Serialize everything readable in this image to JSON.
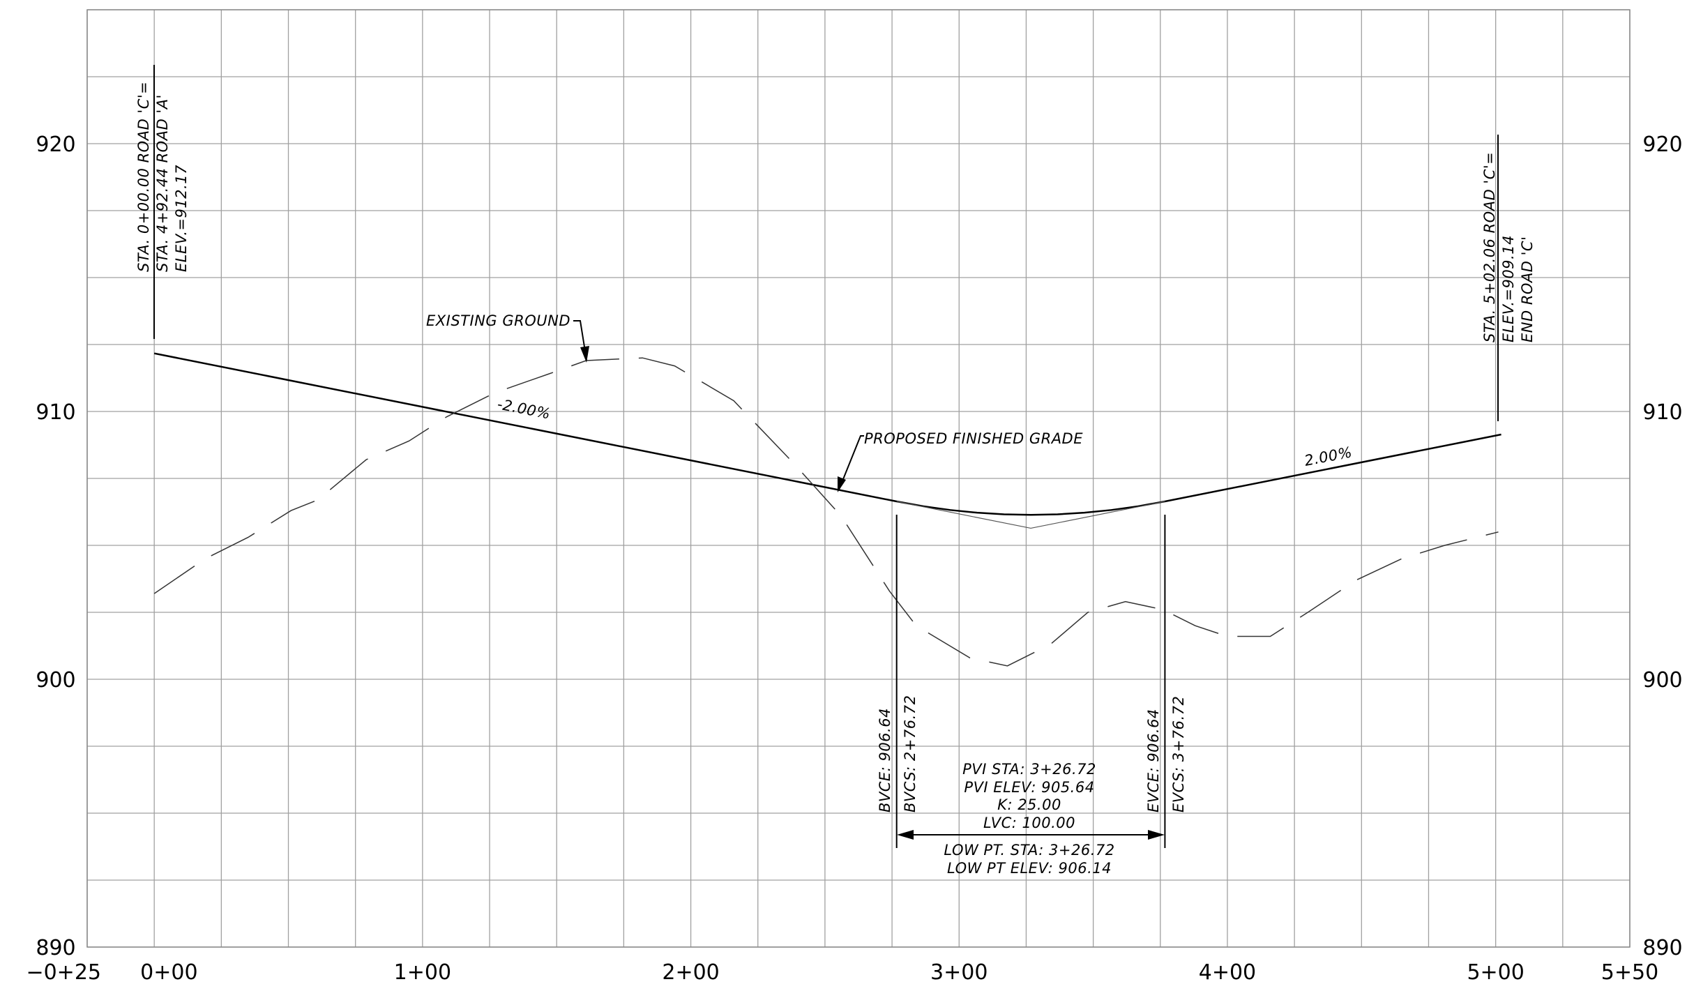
{
  "chart_data": {
    "type": "line",
    "xlim": [
      -25,
      550
    ],
    "ylim": [
      890,
      925
    ],
    "xticks": [
      {
        "value": -25,
        "label": "−0+25"
      },
      {
        "value": 0,
        "label": "0+00"
      },
      {
        "value": 100,
        "label": "1+00"
      },
      {
        "value": 200,
        "label": "2+00"
      },
      {
        "value": 300,
        "label": "3+00"
      },
      {
        "value": 400,
        "label": "4+00"
      },
      {
        "value": 500,
        "label": "5+00"
      },
      {
        "value": 550,
        "label": "5+50"
      }
    ],
    "yticks": [
      890,
      900,
      910,
      920
    ],
    "x_grid": [
      -25,
      0,
      25,
      50,
      75,
      100,
      125,
      150,
      175,
      200,
      225,
      250,
      275,
      300,
      325,
      350,
      375,
      400,
      425,
      450,
      475,
      500,
      525,
      550
    ],
    "y_grid": [
      890,
      892.5,
      895,
      897.5,
      900,
      902.5,
      905,
      907.5,
      910,
      912.5,
      915,
      917.5,
      920,
      922.5,
      925
    ],
    "grid": true,
    "series": [
      {
        "color": "#000000",
        "dashed": false,
        "width": 2.5,
        "x": [
          0,
          276.72,
          286.72,
          296.72,
          306.72,
          316.72,
          326.72,
          336.72,
          346.72,
          356.72,
          366.72,
          376.72,
          502.06
        ],
        "values": [
          912.17,
          906.64,
          906.46,
          906.32,
          906.22,
          906.16,
          906.14,
          906.16,
          906.22,
          906.32,
          906.46,
          906.64,
          909.14
        ]
      },
      {
        "color": "#333333",
        "dashed": true,
        "width": 1.5,
        "x": [
          0,
          19,
          35,
          51,
          61,
          79,
          95,
          109,
          127,
          147,
          161,
          182,
          194,
          216,
          238,
          256,
          274,
          284,
          304,
          318,
          334,
          348,
          362,
          376,
          388,
          400,
          416,
          430,
          448,
          465,
          481,
          501
        ],
        "values": [
          903.2,
          904.5,
          905.3,
          906.3,
          906.7,
          908.2,
          908.9,
          909.8,
          910.7,
          911.4,
          911.9,
          912.0,
          911.7,
          910.4,
          908.1,
          906.1,
          903.3,
          902.0,
          900.8,
          900.5,
          901.3,
          902.5,
          902.9,
          902.6,
          902.0,
          901.6,
          901.6,
          902.5,
          903.7,
          904.5,
          905.0,
          905.5
        ]
      },
      {
        "color": "#555555",
        "dashed": false,
        "width": 1.2,
        "x": [
          276.72,
          326.72,
          376.72
        ],
        "values": [
          906.64,
          905.64,
          906.64
        ]
      }
    ],
    "annotations": {
      "start_station": [
        "STA. 0+00.00 ROAD 'C'=",
        "STA. 4+92.44 ROAD 'A'",
        "ELEV.=912.17"
      ],
      "end_station": [
        "STA. 5+02.06 ROAD 'C'=",
        "ELEV.=909.14",
        "END ROAD 'C'"
      ],
      "bvc": [
        "BVCE: 906.64",
        "BVCS: 2+76.72"
      ],
      "evc": [
        "EVCE: 906.64",
        "EVCS: 3+76.72"
      ],
      "curve": [
        "PVI STA: 3+26.72",
        "PVI ELEV: 905.64",
        "K: 25.00",
        "LVC: 100.00"
      ],
      "low_point": [
        "LOW PT. STA: 3+26.72",
        "LOW PT ELEV: 906.14"
      ],
      "existing_ground": "EXISTING GROUND",
      "proposed_grade": "PROPOSED FINISHED GRADE",
      "grade_in": "-2.00%",
      "grade_out": "2.00%"
    }
  }
}
